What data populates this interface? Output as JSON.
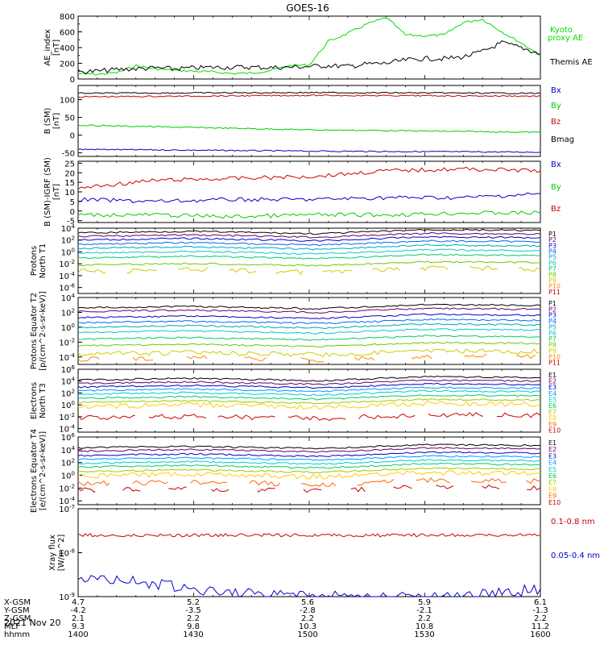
{
  "title": "GOES-16",
  "date": "2021 Nov 20",
  "chart_data": [
    {
      "type": "line",
      "ylabel": "AE_index [nT]",
      "ylim": [
        0,
        800
      ],
      "yticks": [
        "0",
        "200",
        "400",
        "600",
        "800"
      ],
      "x_time_range": [
        "1400",
        "1600"
      ],
      "series": [
        {
          "name": "Kyoto proxy AE",
          "color": "#00dd00",
          "x": [
            1400,
            1405,
            1410,
            1415,
            1420,
            1425,
            1430,
            1435,
            1440,
            1445,
            1450,
            1455,
            1500,
            1505,
            1510,
            1515,
            1520,
            1525,
            1530,
            1535,
            1540,
            1545,
            1550,
            1555,
            1600
          ],
          "values": [
            70,
            60,
            80,
            170,
            130,
            110,
            100,
            90,
            70,
            75,
            110,
            170,
            180,
            480,
            580,
            700,
            780,
            560,
            550,
            560,
            720,
            760,
            600,
            460,
            300
          ]
        },
        {
          "name": "Themis AE",
          "color": "#000000",
          "x": [
            1400,
            1405,
            1410,
            1415,
            1420,
            1425,
            1430,
            1435,
            1440,
            1445,
            1450,
            1455,
            1500,
            1505,
            1510,
            1515,
            1520,
            1525,
            1530,
            1535,
            1540,
            1545,
            1550,
            1555,
            1600
          ],
          "values": [
            90,
            100,
            120,
            130,
            140,
            130,
            140,
            150,
            150,
            150,
            145,
            150,
            160,
            170,
            160,
            190,
            200,
            240,
            260,
            260,
            280,
            350,
            460,
            400,
            320
          ]
        }
      ]
    },
    {
      "type": "line",
      "ylabel": "B (SM) [nT]",
      "ylim": [
        -60,
        140
      ],
      "yticks": [
        "-50",
        "0",
        "50",
        "100"
      ],
      "series": [
        {
          "name": "Bx",
          "color": "#0000cc",
          "x": [
            1400,
            1500,
            1600
          ],
          "values": [
            -40,
            -45,
            -48
          ]
        },
        {
          "name": "By",
          "color": "#00cc00",
          "x": [
            1400,
            1500,
            1600
          ],
          "values": [
            28,
            15,
            8
          ]
        },
        {
          "name": "Bz",
          "color": "#cc0000",
          "x": [
            1400,
            1500,
            1600
          ],
          "values": [
            108,
            112,
            110
          ]
        },
        {
          "name": "Bmag",
          "color": "#000000",
          "x": [
            1400,
            1500,
            1600
          ],
          "values": [
            118,
            120,
            118
          ]
        }
      ]
    },
    {
      "type": "line",
      "ylabel": "B (SM)-IGRF (SM) [nT]",
      "ylim": [
        -5,
        25
      ],
      "yticks": [
        "-5",
        "0",
        "5",
        "10",
        "15",
        "20",
        "25"
      ],
      "series": [
        {
          "name": "Bx",
          "color": "#0000cc",
          "x": [
            1400,
            1420,
            1440,
            1500,
            1520,
            1540,
            1600
          ],
          "values": [
            6,
            5,
            6,
            6,
            7,
            7,
            9
          ]
        },
        {
          "name": "By",
          "color": "#00cc00",
          "x": [
            1400,
            1420,
            1440,
            1500,
            1520,
            1540,
            1600
          ],
          "values": [
            -2,
            -2,
            -3,
            -2,
            -2,
            -1,
            -1
          ]
        },
        {
          "name": "Bz",
          "color": "#cc0000",
          "x": [
            1400,
            1420,
            1440,
            1500,
            1520,
            1540,
            1600
          ],
          "values": [
            12,
            16,
            17,
            18,
            21,
            22,
            21
          ]
        }
      ]
    },
    {
      "type": "line",
      "ylabel": "Protons North T1",
      "yscale": "log",
      "yticks": [
        "10^-6",
        "10^-4",
        "10^-2",
        "10^0",
        "10^2",
        "10^4"
      ],
      "channels": [
        "P1",
        "P2",
        "P3",
        "P4",
        "P5",
        "P6",
        "P7",
        "P8",
        "P9",
        "P10",
        "P11"
      ]
    },
    {
      "type": "line",
      "ylabel": "Protons Equator T2 [p/(cm^2-s-sr-keV)]",
      "yscale": "log",
      "yticks": [
        "10^-4",
        "10^-2",
        "10^0",
        "10^2",
        "10^4"
      ],
      "channels": [
        "P1",
        "P2",
        "P3",
        "P4",
        "P5",
        "P6",
        "P7",
        "P8",
        "P9",
        "P10",
        "P11"
      ]
    },
    {
      "type": "line",
      "ylabel": "Electrons North T3",
      "yscale": "log",
      "yticks": [
        "10^-4",
        "10^-2",
        "10^0",
        "10^2",
        "10^4",
        "10^6"
      ],
      "channels": [
        "E1",
        "E2",
        "E3",
        "E4",
        "E5",
        "E6",
        "E7",
        "E8",
        "E9",
        "E10"
      ]
    },
    {
      "type": "line",
      "ylabel": "Electrons Equator T4 [e/(cm^2-s-sr-keV)]",
      "yscale": "log",
      "yticks": [
        "10^-4",
        "10^-2",
        "10^0",
        "10^2",
        "10^4",
        "10^6"
      ],
      "channels": [
        "E1",
        "E2",
        "E3",
        "E4",
        "E5",
        "E6",
        "E7",
        "E8",
        "E9",
        "E10"
      ]
    },
    {
      "type": "line",
      "ylabel": "Xray flux [W/m^2]",
      "yscale": "log",
      "yticks": [
        "10^-9",
        "10^-8",
        "10^-7"
      ],
      "series": [
        {
          "name": "0.1-0.8 nm",
          "color": "#cc0000",
          "x": [
            1400,
            1600
          ],
          "values": [
            2.5e-08,
            2.5e-08
          ]
        },
        {
          "name": "0.05-0.4 nm",
          "color": "#0000cc",
          "x": [
            1400,
            1420,
            1440,
            1500,
            1520,
            1540,
            1600
          ],
          "values": [
            3e-09,
            2e-09,
            1.2e-09,
            1e-09,
            1e-09,
            1e-09,
            1.5e-09
          ]
        }
      ]
    }
  ],
  "channel_colors": {
    "P": [
      "#000000",
      "#660066",
      "#0000cc",
      "#0066ff",
      "#00aaaa",
      "#00cccc",
      "#00cc66",
      "#66cc00",
      "#cccc00",
      "#ff8800",
      "#cc0000"
    ],
    "E": [
      "#000000",
      "#660066",
      "#0000cc",
      "#0099ff",
      "#00cccc",
      "#00cc66",
      "#99cc00",
      "#ffcc00",
      "#ff6600",
      "#cc0000"
    ]
  },
  "axis_table": {
    "labels": [
      "X-GSM",
      "Y-GSM",
      "Z-GSM",
      "MLT",
      "hhmm"
    ],
    "columns": [
      [
        "4.7",
        "-4.2",
        "2.1",
        "9.3",
        "1400"
      ],
      [
        "5.2",
        "-3.5",
        "2.2",
        "9.8",
        "1430"
      ],
      [
        "5.6",
        "-2.8",
        "2.2",
        "10.3",
        "1500"
      ],
      [
        "5.9",
        "-2.1",
        "2.2",
        "10.8",
        "1530"
      ],
      [
        "6.1",
        "-1.3",
        "2.2",
        "11.2",
        "1600"
      ]
    ]
  }
}
